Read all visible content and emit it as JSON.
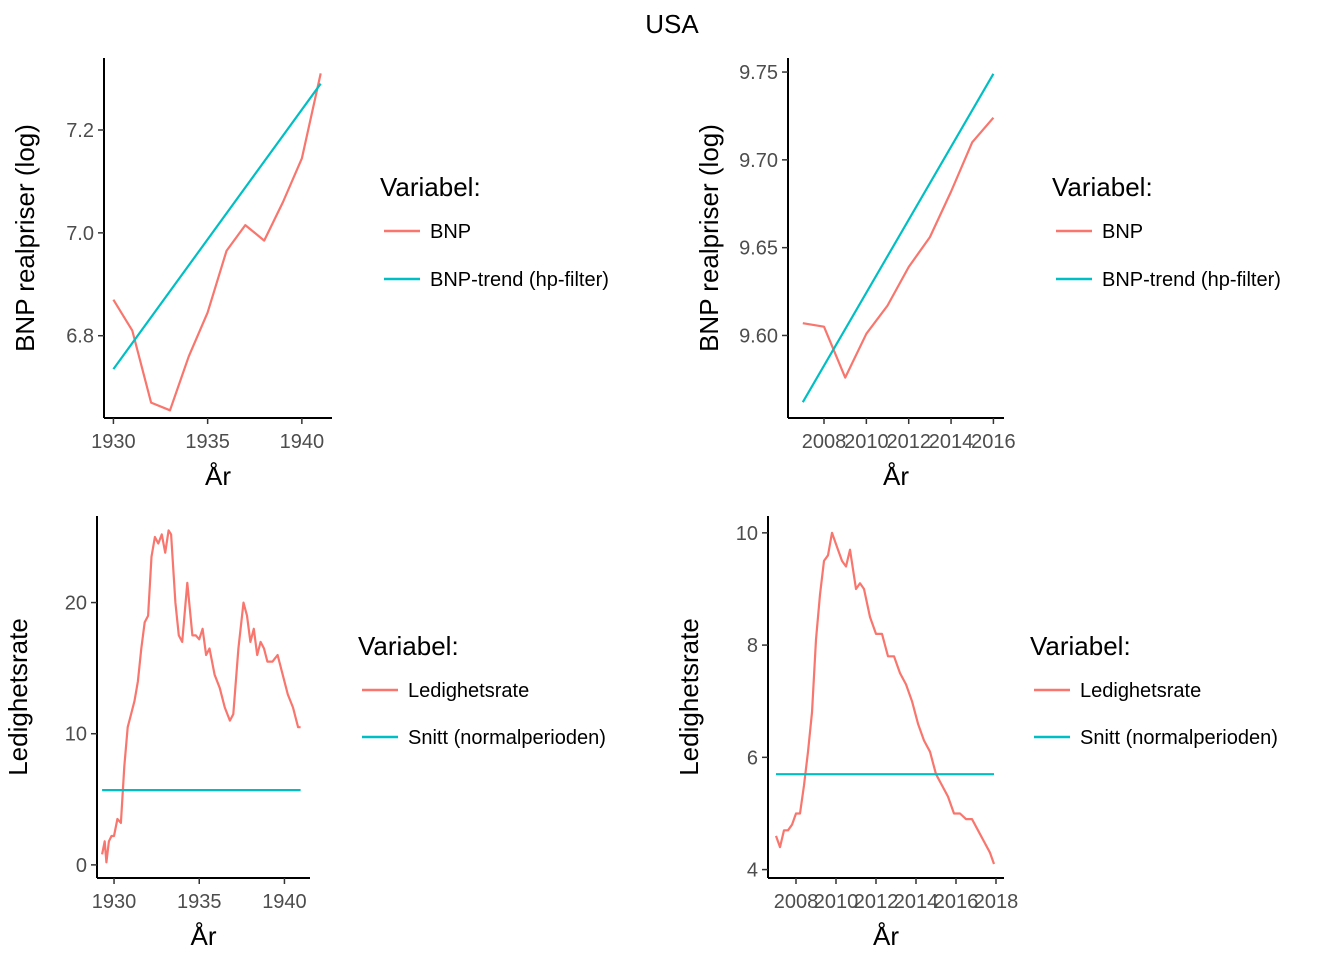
{
  "figure": {
    "title": "USA"
  },
  "colors": {
    "series1": "#F8766D",
    "series2": "#00BFC4"
  },
  "chart_data": [
    {
      "type": "line",
      "xlabel": "År",
      "ylabel": "BNP realpriser (log)",
      "xlim": [
        1929.5,
        1941.6
      ],
      "ylim": [
        6.64,
        7.34
      ],
      "xticks": [
        1930,
        1935,
        1940
      ],
      "yticks": [
        6.8,
        7.0,
        7.2
      ],
      "yticklabels": [
        "6.8",
        "7.0",
        "7.2"
      ],
      "legend_title": "Variabel:",
      "legend_position": "right",
      "series": [
        {
          "name": "BNP",
          "x": [
            1930,
            1931,
            1932,
            1933,
            1934,
            1935,
            1936,
            1937,
            1938,
            1939,
            1940,
            1941
          ],
          "y": [
            6.87,
            6.81,
            6.67,
            6.655,
            6.76,
            6.845,
            6.965,
            7.015,
            6.985,
            7.06,
            7.145,
            7.31
          ]
        },
        {
          "name": "BNP-trend (hp-filter)",
          "x": [
            1930,
            1941
          ],
          "y": [
            6.735,
            7.29
          ]
        }
      ]
    },
    {
      "type": "line",
      "xlabel": "År",
      "ylabel": "BNP realpriser (log)",
      "xlim": [
        2006.3,
        2016.5
      ],
      "ylim": [
        9.553,
        9.758
      ],
      "xticks": [
        2008,
        2010,
        2012,
        2014,
        2016
      ],
      "yticks": [
        9.6,
        9.65,
        9.7,
        9.75
      ],
      "yticklabels": [
        "9.60",
        "9.65",
        "9.70",
        "9.75"
      ],
      "legend_title": "Variabel:",
      "legend_position": "right",
      "series": [
        {
          "name": "BNP",
          "x": [
            2007,
            2008,
            2009,
            2010,
            2011,
            2012,
            2013,
            2014,
            2015,
            2016
          ],
          "y": [
            9.607,
            9.605,
            9.576,
            9.601,
            9.617,
            9.639,
            9.656,
            9.682,
            9.71,
            9.724
          ]
        },
        {
          "name": "BNP-trend (hp-filter)",
          "x": [
            2007,
            2016
          ],
          "y": [
            9.562,
            9.749
          ]
        }
      ]
    },
    {
      "type": "line",
      "xlabel": "År",
      "ylabel": "Ledighetsrate",
      "xlim": [
        1929.0,
        1941.5
      ],
      "ylim": [
        -1.0,
        26.6
      ],
      "xticks": [
        1930,
        1935,
        1940
      ],
      "yticks": [
        0,
        10,
        20
      ],
      "yticklabels": [
        "0",
        "10",
        "20"
      ],
      "legend_title": "Variabel:",
      "legend_position": "right",
      "series": [
        {
          "name": "Ledighetsrate",
          "x": [
            1929.3,
            1929.45,
            1929.55,
            1929.7,
            1929.85,
            1930.0,
            1930.2,
            1930.4,
            1930.6,
            1930.8,
            1931.0,
            1931.2,
            1931.4,
            1931.6,
            1931.8,
            1932.0,
            1932.2,
            1932.4,
            1932.6,
            1932.8,
            1933.0,
            1933.2,
            1933.35,
            1933.6,
            1933.8,
            1934.0,
            1934.3,
            1934.6,
            1934.8,
            1935.0,
            1935.2,
            1935.4,
            1935.6,
            1935.9,
            1936.2,
            1936.5,
            1936.8,
            1937.0,
            1937.3,
            1937.6,
            1937.8,
            1938.0,
            1938.2,
            1938.4,
            1938.6,
            1938.8,
            1939.0,
            1939.3,
            1939.6,
            1939.9,
            1940.2,
            1940.5,
            1940.8,
            1940.95
          ],
          "y": [
            0.8,
            1.8,
            0.2,
            1.8,
            2.2,
            2.2,
            3.5,
            3.2,
            7.5,
            10.5,
            11.5,
            12.5,
            14.0,
            16.5,
            18.5,
            19.0,
            23.5,
            25.0,
            24.5,
            25.2,
            23.8,
            25.5,
            25.2,
            20.0,
            17.5,
            17.0,
            21.5,
            17.5,
            17.5,
            17.2,
            18.0,
            16.0,
            16.5,
            14.5,
            13.5,
            12.0,
            11.0,
            11.5,
            16.5,
            20.0,
            19.0,
            17.0,
            18.0,
            16.0,
            17.0,
            16.5,
            15.5,
            15.5,
            16.0,
            14.5,
            13.0,
            12.0,
            10.5,
            10.5
          ]
        },
        {
          "name": "Snitt (normalperioden)",
          "x": [
            1929.3,
            1940.95
          ],
          "y": [
            5.7,
            5.7
          ]
        }
      ]
    },
    {
      "type": "line",
      "xlabel": "År",
      "ylabel": "Ledighetsrate",
      "xlim": [
        2006.6,
        2018.4
      ],
      "ylim": [
        3.85,
        10.3
      ],
      "xticks": [
        2008,
        2010,
        2012,
        2014,
        2016,
        2018
      ],
      "yticks": [
        4,
        6,
        8,
        10
      ],
      "yticklabels": [
        "4",
        "6",
        "8",
        "10"
      ],
      "legend_title": "Variabel:",
      "legend_position": "right",
      "series": [
        {
          "name": "Ledighetsrate",
          "x": [
            2007.0,
            2007.2,
            2007.4,
            2007.6,
            2007.8,
            2008.0,
            2008.2,
            2008.4,
            2008.6,
            2008.8,
            2009.0,
            2009.2,
            2009.4,
            2009.6,
            2009.8,
            2010.0,
            2010.3,
            2010.5,
            2010.7,
            2011.0,
            2011.2,
            2011.4,
            2011.7,
            2012.0,
            2012.3,
            2012.6,
            2012.9,
            2013.2,
            2013.5,
            2013.8,
            2014.1,
            2014.4,
            2014.7,
            2015.0,
            2015.3,
            2015.6,
            2015.9,
            2016.2,
            2016.5,
            2016.8,
            2017.1,
            2017.4,
            2017.7,
            2017.9
          ],
          "y": [
            4.6,
            4.4,
            4.7,
            4.7,
            4.8,
            5.0,
            5.0,
            5.5,
            6.1,
            6.8,
            8.1,
            8.9,
            9.5,
            9.6,
            10.0,
            9.8,
            9.5,
            9.4,
            9.7,
            9.0,
            9.1,
            9.0,
            8.5,
            8.2,
            8.2,
            7.8,
            7.8,
            7.5,
            7.3,
            7.0,
            6.6,
            6.3,
            6.1,
            5.7,
            5.5,
            5.3,
            5.0,
            5.0,
            4.9,
            4.9,
            4.7,
            4.5,
            4.3,
            4.1
          ]
        },
        {
          "name": "Snitt (normalperioden)",
          "x": [
            2007.0,
            2017.9
          ],
          "y": [
            5.7,
            5.7
          ]
        }
      ]
    }
  ]
}
